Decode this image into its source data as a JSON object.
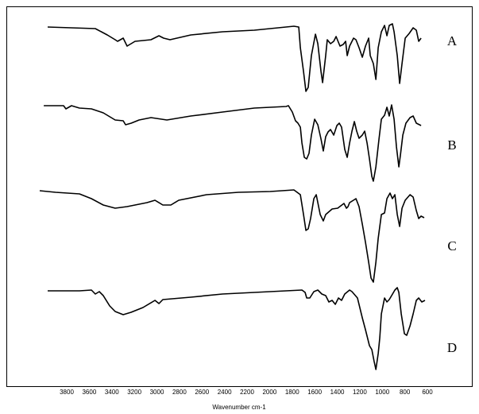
{
  "chart_data": {
    "type": "line",
    "title": "",
    "xlabel": "Wavenumber cm-1",
    "ylabel": "",
    "xlim": [
      4340,
      200
    ],
    "x_reversed": true,
    "grid": false,
    "x_ticks": [
      3800,
      3600,
      3400,
      3200,
      3000,
      2800,
      2600,
      2400,
      2200,
      2000,
      1800,
      1600,
      1400,
      1200,
      1000,
      800,
      600
    ],
    "y_units": "relative transmittance (unlabeled, traces vertically offset)",
    "line_color": "#000000",
    "series": [
      {
        "name": "A",
        "points": [
          [
            3969,
            118
          ],
          [
            3546,
            116
          ],
          [
            3440,
            108
          ],
          [
            3370,
            102
          ],
          [
            3349,
            100
          ],
          [
            3299,
            104
          ],
          [
            3264,
            94
          ],
          [
            3194,
            100
          ],
          [
            3053,
            102
          ],
          [
            2982,
            107
          ],
          [
            2940,
            104
          ],
          [
            2884,
            102
          ],
          [
            2700,
            108
          ],
          [
            2418,
            112
          ],
          [
            2136,
            114
          ],
          [
            1784,
            119
          ],
          [
            1741,
            118
          ],
          [
            1727,
            92
          ],
          [
            1699,
            62
          ],
          [
            1678,
            37
          ],
          [
            1657,
            42
          ],
          [
            1629,
            82
          ],
          [
            1593,
            109
          ],
          [
            1572,
            97
          ],
          [
            1544,
            62
          ],
          [
            1530,
            48
          ],
          [
            1502,
            82
          ],
          [
            1488,
            102
          ],
          [
            1459,
            97
          ],
          [
            1431,
            100
          ],
          [
            1410,
            106
          ],
          [
            1375,
            94
          ],
          [
            1347,
            96
          ],
          [
            1325,
            100
          ],
          [
            1311,
            82
          ],
          [
            1290,
            94
          ],
          [
            1255,
            104
          ],
          [
            1234,
            102
          ],
          [
            1206,
            92
          ],
          [
            1177,
            80
          ],
          [
            1149,
            94
          ],
          [
            1121,
            104
          ],
          [
            1107,
            82
          ],
          [
            1079,
            72
          ],
          [
            1057,
            52
          ],
          [
            1036,
            92
          ],
          [
            1008,
            112
          ],
          [
            980,
            120
          ],
          [
            959,
            107
          ],
          [
            938,
            120
          ],
          [
            910,
            122
          ],
          [
            895,
            112
          ],
          [
            867,
            82
          ],
          [
            846,
            47
          ],
          [
            825,
            72
          ],
          [
            797,
            104
          ],
          [
            761,
            110
          ],
          [
            726,
            117
          ],
          [
            698,
            114
          ],
          [
            677,
            100
          ],
          [
            656,
            104
          ]
        ]
      },
      {
        "name": "B",
        "points": [
          [
            4004,
            118
          ],
          [
            3828,
            118
          ],
          [
            3807,
            114
          ],
          [
            3758,
            118
          ],
          [
            3687,
            115
          ],
          [
            3581,
            114
          ],
          [
            3476,
            109
          ],
          [
            3405,
            103
          ],
          [
            3370,
            100
          ],
          [
            3299,
            99
          ],
          [
            3278,
            94
          ],
          [
            3228,
            96
          ],
          [
            3158,
            100
          ],
          [
            3052,
            103
          ],
          [
            2911,
            100
          ],
          [
            2700,
            105
          ],
          [
            2418,
            110
          ],
          [
            2136,
            115
          ],
          [
            1854,
            117
          ],
          [
            1833,
            118
          ],
          [
            1798,
            110
          ],
          [
            1770,
            99
          ],
          [
            1748,
            96
          ],
          [
            1727,
            91
          ],
          [
            1713,
            71
          ],
          [
            1692,
            53
          ],
          [
            1671,
            51
          ],
          [
            1650,
            58
          ],
          [
            1629,
            81
          ],
          [
            1600,
            101
          ],
          [
            1572,
            94
          ],
          [
            1544,
            76
          ],
          [
            1523,
            61
          ],
          [
            1502,
            79
          ],
          [
            1481,
            85
          ],
          [
            1459,
            88
          ],
          [
            1431,
            81
          ],
          [
            1403,
            93
          ],
          [
            1382,
            96
          ],
          [
            1361,
            91
          ],
          [
            1333,
            63
          ],
          [
            1311,
            53
          ],
          [
            1290,
            71
          ],
          [
            1269,
            86
          ],
          [
            1248,
            98
          ],
          [
            1227,
            86
          ],
          [
            1206,
            77
          ],
          [
            1177,
            81
          ],
          [
            1156,
            86
          ],
          [
            1135,
            71
          ],
          [
            1114,
            51
          ],
          [
            1093,
            29
          ],
          [
            1079,
            23
          ],
          [
            1057,
            41
          ],
          [
            1029,
            76
          ],
          [
            1008,
            101
          ],
          [
            980,
            106
          ],
          [
            959,
            116
          ],
          [
            938,
            105
          ],
          [
            917,
            119
          ],
          [
            895,
            101
          ],
          [
            874,
            66
          ],
          [
            853,
            41
          ],
          [
            839,
            56
          ],
          [
            818,
            81
          ],
          [
            790,
            96
          ],
          [
            754,
            103
          ],
          [
            726,
            105
          ],
          [
            698,
            96
          ],
          [
            656,
            93
          ]
        ]
      },
      {
        "name": "C",
        "points": [
          [
            4040,
            120
          ],
          [
            3899,
            118
          ],
          [
            3687,
            116
          ],
          [
            3581,
            110
          ],
          [
            3476,
            102
          ],
          [
            3370,
            98
          ],
          [
            3264,
            100
          ],
          [
            3194,
            102
          ],
          [
            3088,
            105
          ],
          [
            3017,
            108
          ],
          [
            2947,
            102
          ],
          [
            2876,
            102
          ],
          [
            2806,
            108
          ],
          [
            2559,
            115
          ],
          [
            2277,
            118
          ],
          [
            1995,
            119
          ],
          [
            1784,
            121
          ],
          [
            1727,
            115
          ],
          [
            1699,
            90
          ],
          [
            1678,
            70
          ],
          [
            1657,
            72
          ],
          [
            1636,
            85
          ],
          [
            1607,
            110
          ],
          [
            1586,
            115
          ],
          [
            1572,
            105
          ],
          [
            1551,
            90
          ],
          [
            1523,
            82
          ],
          [
            1502,
            90
          ],
          [
            1445,
            97
          ],
          [
            1396,
            98
          ],
          [
            1340,
            104
          ],
          [
            1318,
            98
          ],
          [
            1304,
            100
          ],
          [
            1290,
            105
          ],
          [
            1234,
            110
          ],
          [
            1206,
            100
          ],
          [
            1177,
            78
          ],
          [
            1149,
            55
          ],
          [
            1121,
            30
          ],
          [
            1100,
            10
          ],
          [
            1079,
            5
          ],
          [
            1057,
            30
          ],
          [
            1036,
            60
          ],
          [
            1008,
            90
          ],
          [
            980,
            92
          ],
          [
            959,
            110
          ],
          [
            931,
            117
          ],
          [
            910,
            110
          ],
          [
            888,
            115
          ],
          [
            867,
            90
          ],
          [
            846,
            75
          ],
          [
            825,
            98
          ],
          [
            797,
            108
          ],
          [
            754,
            115
          ],
          [
            726,
            112
          ],
          [
            698,
            95
          ],
          [
            677,
            85
          ],
          [
            656,
            88
          ],
          [
            628,
            86
          ]
        ]
      },
      {
        "name": "D",
        "points": [
          [
            3969,
            119
          ],
          [
            3687,
            119
          ],
          [
            3581,
            120
          ],
          [
            3546,
            115
          ],
          [
            3511,
            118
          ],
          [
            3476,
            113
          ],
          [
            3419,
            100
          ],
          [
            3370,
            93
          ],
          [
            3299,
            89
          ],
          [
            3229,
            92
          ],
          [
            3123,
            98
          ],
          [
            3017,
            107
          ],
          [
            2982,
            103
          ],
          [
            2947,
            108
          ],
          [
            2700,
            111
          ],
          [
            2418,
            115
          ],
          [
            2136,
            117
          ],
          [
            1854,
            119
          ],
          [
            1713,
            120
          ],
          [
            1685,
            117
          ],
          [
            1671,
            110
          ],
          [
            1643,
            110
          ],
          [
            1607,
            118
          ],
          [
            1572,
            120
          ],
          [
            1537,
            115
          ],
          [
            1502,
            113
          ],
          [
            1474,
            105
          ],
          [
            1445,
            107
          ],
          [
            1417,
            102
          ],
          [
            1389,
            110
          ],
          [
            1361,
            107
          ],
          [
            1333,
            115
          ],
          [
            1290,
            120
          ],
          [
            1269,
            118
          ],
          [
            1220,
            110
          ],
          [
            1177,
            85
          ],
          [
            1149,
            70
          ],
          [
            1114,
            50
          ],
          [
            1093,
            45
          ],
          [
            1072,
            30
          ],
          [
            1057,
            20
          ],
          [
            1036,
            40
          ],
          [
            1022,
            60
          ],
          [
            1008,
            90
          ],
          [
            980,
            110
          ],
          [
            959,
            105
          ],
          [
            938,
            108
          ],
          [
            917,
            113
          ],
          [
            888,
            120
          ],
          [
            867,
            123
          ],
          [
            853,
            117
          ],
          [
            832,
            90
          ],
          [
            804,
            65
          ],
          [
            783,
            63
          ],
          [
            754,
            75
          ],
          [
            726,
            90
          ],
          [
            698,
            107
          ],
          [
            677,
            110
          ],
          [
            649,
            105
          ],
          [
            621,
            107
          ]
        ]
      }
    ]
  }
}
